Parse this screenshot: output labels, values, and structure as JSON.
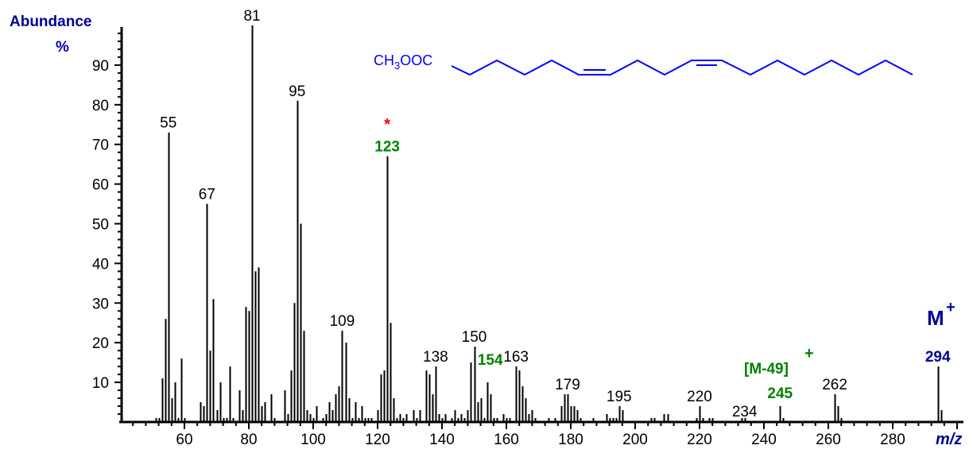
{
  "chart_data": {
    "type": "bar",
    "title": "",
    "xlabel": "m/z",
    "ylabel": "Abundance %",
    "xlim": [
      40,
      300
    ],
    "ylim": [
      0,
      100
    ],
    "x_major_ticks": [
      60,
      80,
      100,
      120,
      140,
      160,
      180,
      200,
      220,
      240,
      260,
      280
    ],
    "y_major_ticks": [
      10,
      20,
      30,
      40,
      50,
      60,
      70,
      80,
      90
    ],
    "grid": false,
    "peaks": [
      [
        51,
        1
      ],
      [
        52,
        1
      ],
      [
        53,
        11
      ],
      [
        54,
        26
      ],
      [
        55,
        73
      ],
      [
        56,
        6
      ],
      [
        57,
        10
      ],
      [
        58,
        1
      ],
      [
        59,
        16
      ],
      [
        60,
        1
      ],
      [
        65,
        5
      ],
      [
        66,
        4
      ],
      [
        67,
        55
      ],
      [
        68,
        18
      ],
      [
        69,
        31
      ],
      [
        70,
        3
      ],
      [
        71,
        10
      ],
      [
        72,
        1
      ],
      [
        73,
        1
      ],
      [
        74,
        14
      ],
      [
        75,
        1
      ],
      [
        77,
        8
      ],
      [
        78,
        3
      ],
      [
        79,
        29
      ],
      [
        80,
        28
      ],
      [
        81,
        100
      ],
      [
        82,
        38
      ],
      [
        83,
        39
      ],
      [
        84,
        4
      ],
      [
        85,
        5
      ],
      [
        87,
        7
      ],
      [
        88,
        1
      ],
      [
        91,
        8
      ],
      [
        92,
        2
      ],
      [
        93,
        13
      ],
      [
        94,
        30
      ],
      [
        95,
        81
      ],
      [
        96,
        50
      ],
      [
        97,
        23
      ],
      [
        98,
        3
      ],
      [
        99,
        2
      ],
      [
        100,
        1
      ],
      [
        101,
        4
      ],
      [
        103,
        1
      ],
      [
        104,
        2
      ],
      [
        105,
        5
      ],
      [
        106,
        3
      ],
      [
        107,
        7
      ],
      [
        108,
        9
      ],
      [
        109,
        23
      ],
      [
        110,
        20
      ],
      [
        111,
        6
      ],
      [
        112,
        1
      ],
      [
        113,
        5
      ],
      [
        114,
        1
      ],
      [
        115,
        4
      ],
      [
        116,
        1
      ],
      [
        117,
        1
      ],
      [
        118,
        1
      ],
      [
        120,
        3
      ],
      [
        121,
        12
      ],
      [
        122,
        13
      ],
      [
        123,
        67
      ],
      [
        124,
        25
      ],
      [
        125,
        6
      ],
      [
        126,
        1
      ],
      [
        127,
        2
      ],
      [
        128,
        1
      ],
      [
        129,
        2
      ],
      [
        131,
        3
      ],
      [
        132,
        1
      ],
      [
        133,
        3
      ],
      [
        135,
        13
      ],
      [
        136,
        12
      ],
      [
        137,
        7
      ],
      [
        138,
        14
      ],
      [
        139,
        2
      ],
      [
        140,
        1
      ],
      [
        141,
        2
      ],
      [
        143,
        1
      ],
      [
        144,
        3
      ],
      [
        145,
        1
      ],
      [
        146,
        2
      ],
      [
        147,
        1
      ],
      [
        148,
        3
      ],
      [
        149,
        15
      ],
      [
        150,
        19
      ],
      [
        151,
        5
      ],
      [
        152,
        6
      ],
      [
        153,
        1
      ],
      [
        154,
        10
      ],
      [
        155,
        7
      ],
      [
        156,
        1
      ],
      [
        157,
        1
      ],
      [
        159,
        2
      ],
      [
        160,
        1
      ],
      [
        161,
        1
      ],
      [
        163,
        14
      ],
      [
        164,
        13
      ],
      [
        165,
        9
      ],
      [
        166,
        6
      ],
      [
        167,
        2
      ],
      [
        168,
        3
      ],
      [
        169,
        1
      ],
      [
        173,
        1
      ],
      [
        175,
        1
      ],
      [
        177,
        4
      ],
      [
        178,
        7
      ],
      [
        179,
        7
      ],
      [
        180,
        4
      ],
      [
        181,
        4
      ],
      [
        182,
        3
      ],
      [
        183,
        1
      ],
      [
        187,
        1
      ],
      [
        191,
        2
      ],
      [
        192,
        1
      ],
      [
        193,
        1
      ],
      [
        194,
        1
      ],
      [
        195,
        4
      ],
      [
        196,
        3
      ],
      [
        205,
        1
      ],
      [
        206,
        1
      ],
      [
        209,
        2
      ],
      [
        210,
        2
      ],
      [
        219,
        1
      ],
      [
        220,
        4
      ],
      [
        221,
        1
      ],
      [
        223,
        1
      ],
      [
        224,
        1
      ],
      [
        233,
        1
      ],
      [
        234,
        1
      ],
      [
        245,
        4
      ],
      [
        246,
        1
      ],
      [
        262,
        7
      ],
      [
        263,
        4
      ],
      [
        264,
        1
      ],
      [
        294,
        14
      ],
      [
        295,
        3
      ]
    ],
    "annotations": [
      {
        "mz": 55,
        "text": "55",
        "color": "#000000",
        "bold": false
      },
      {
        "mz": 67,
        "text": "67",
        "color": "#000000",
        "bold": false
      },
      {
        "mz": 81,
        "text": "81",
        "color": "#000000",
        "bold": false
      },
      {
        "mz": 95,
        "text": "95",
        "color": "#000000",
        "bold": false
      },
      {
        "mz": 109,
        "text": "109",
        "color": "#000000",
        "bold": false
      },
      {
        "mz": 123,
        "text": "123",
        "color": "#008000",
        "bold": true,
        "marker": "*"
      },
      {
        "mz": 138,
        "text": "138",
        "color": "#000000",
        "bold": false
      },
      {
        "mz": 150,
        "text": "150",
        "color": "#000000",
        "bold": false
      },
      {
        "mz": 154,
        "text": "154",
        "color": "#008000",
        "bold": true
      },
      {
        "mz": 163,
        "text": "163",
        "color": "#000000",
        "bold": false
      },
      {
        "mz": 179,
        "text": "179",
        "color": "#000000",
        "bold": false
      },
      {
        "mz": 195,
        "text": "195",
        "color": "#000000",
        "bold": false
      },
      {
        "mz": 220,
        "text": "220",
        "color": "#000000",
        "bold": false
      },
      {
        "mz": 234,
        "text": "234",
        "color": "#000000",
        "bold": false
      },
      {
        "mz": 245,
        "text": "245",
        "color": "#008000",
        "bold": true
      },
      {
        "mz": 262,
        "text": "262",
        "color": "#000000",
        "bold": false
      },
      {
        "mz": 294,
        "text": "294",
        "color": "#000099",
        "bold": true
      }
    ],
    "special_labels": {
      "m_minus_49": "[M-49]",
      "molecular_ion": "M",
      "plus": "+",
      "star": "*"
    },
    "structure": {
      "formula_prefix": "CH",
      "formula_sub": "3",
      "formula_suffix": "OOC",
      "description": "methyl octadecadienoate (cis double bonds)"
    }
  },
  "colors": {
    "axis": "#000000",
    "bar": "#000000",
    "axis_title": "#000099",
    "highlight_green": "#008000",
    "molecular_ion": "#000099",
    "star": "#ff0000",
    "structure": "#0000ff"
  },
  "labels": {
    "abundance": "Abundance",
    "percent": "%",
    "mz": "m/z"
  }
}
